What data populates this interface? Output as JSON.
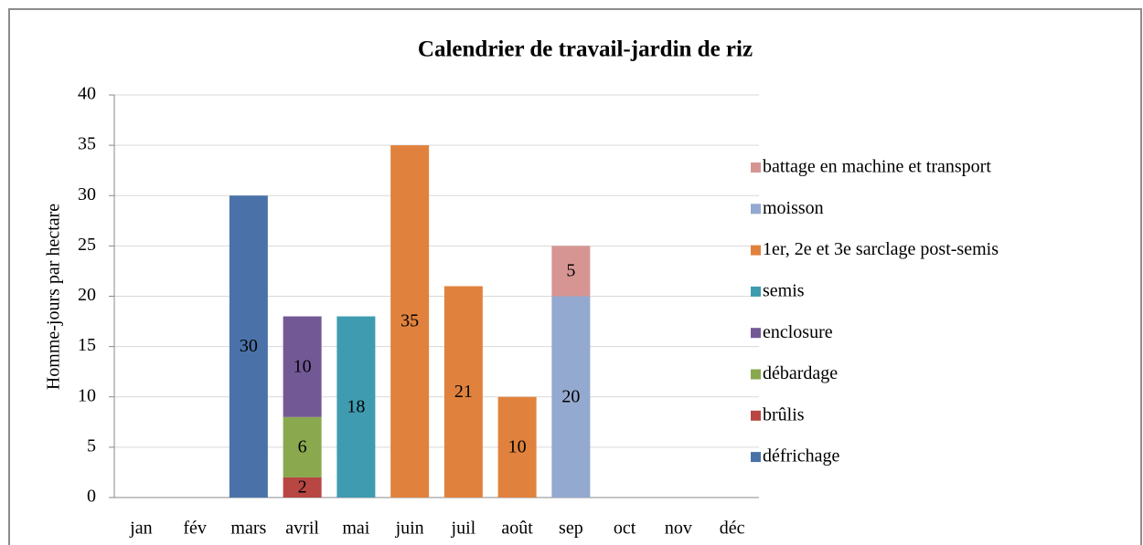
{
  "chart_data": {
    "type": "bar",
    "stacked": true,
    "title": "Calendrier de travail-jardin de riz",
    "y_label": "Homme-jours par hectare",
    "categories": [
      "jan",
      "fév",
      "mars",
      "avril",
      "mai",
      "juin",
      "juil",
      "août",
      "sep",
      "oct",
      "nov",
      "déc"
    ],
    "series": [
      {
        "name": "défrichage",
        "color": "#4a72a8",
        "values": [
          null,
          null,
          30,
          null,
          null,
          null,
          null,
          null,
          null,
          null,
          null,
          null
        ]
      },
      {
        "name": "brûlis",
        "color": "#b84643",
        "values": [
          null,
          null,
          null,
          2,
          null,
          null,
          null,
          null,
          null,
          null,
          null,
          null
        ]
      },
      {
        "name": "débardage",
        "color": "#8aa84e",
        "values": [
          null,
          null,
          null,
          6,
          null,
          null,
          null,
          null,
          null,
          null,
          null,
          null
        ]
      },
      {
        "name": "enclosure",
        "color": "#735896",
        "values": [
          null,
          null,
          null,
          10,
          null,
          null,
          null,
          null,
          null,
          null,
          null,
          null
        ]
      },
      {
        "name": "semis",
        "color": "#3f9bb0",
        "values": [
          null,
          null,
          null,
          null,
          18,
          null,
          null,
          null,
          null,
          null,
          null,
          null
        ]
      },
      {
        "name": "1er, 2e et 3e sarclage post-semis",
        "color": "#e0823d",
        "values": [
          null,
          null,
          null,
          null,
          null,
          35,
          21,
          10,
          null,
          null,
          null,
          null
        ]
      },
      {
        "name": "moisson",
        "color": "#93a9d0",
        "values": [
          null,
          null,
          null,
          null,
          null,
          null,
          null,
          null,
          20,
          null,
          null,
          null
        ]
      },
      {
        "name": "battage en machine et transport",
        "color": "#d69593",
        "values": [
          null,
          null,
          null,
          null,
          null,
          null,
          null,
          null,
          5,
          null,
          null,
          null
        ]
      }
    ],
    "ylim": [
      0,
      40
    ],
    "yticks": [
      0,
      5,
      10,
      15,
      20,
      25,
      30,
      35,
      40
    ],
    "grid": true,
    "legend": "right"
  }
}
